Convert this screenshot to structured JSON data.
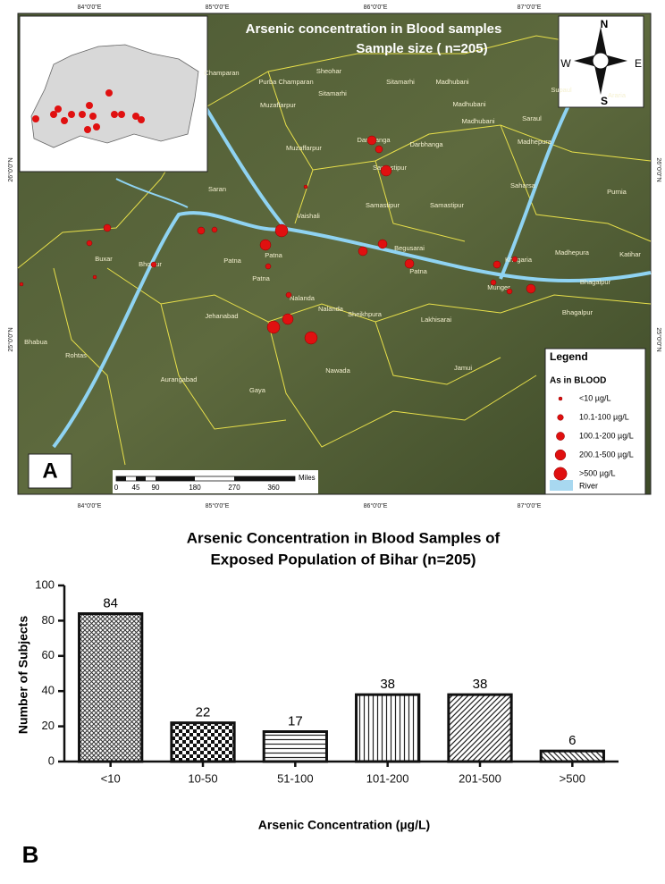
{
  "map": {
    "panel": "A",
    "title": "Arsenic concentration in Blood samples",
    "subtitle": "Sample size ( n=205)",
    "lon_labels": [
      "84°0'0\"E",
      "85°0'0\"E",
      "86°0'0\"E",
      "87°0'0\"E"
    ],
    "lat_labels": [
      "26°0'0\"N",
      "25°0'0\"N"
    ],
    "compass": {
      "n": "N",
      "s": "S",
      "e": "E",
      "w": "W"
    },
    "districts": [
      "Champaran",
      "Purba Champaran",
      "Sitamarhi",
      "Sheohar",
      "Sitamarhi",
      "Madhubani",
      "Madhubani",
      "Madhubani",
      "Supaul",
      "Araria",
      "Saraul",
      "Muzaffarpur",
      "Muzaffarpur",
      "Darbhanga",
      "Darbhanga",
      "Madhepura",
      "Samastipur",
      "Samastipur",
      "Saharsa",
      "Purnia",
      "Saran",
      "Vaishali",
      "Samastipur",
      "Khagaria",
      "Madhepura",
      "Katihar",
      "Buxar",
      "Bhojpur",
      "Patna",
      "Patna",
      "Patna",
      "Begusarai",
      "Patna",
      "Bhagalpur",
      "Nalanda",
      "Nalanda",
      "Munger",
      "Sheikhpura",
      "Lakhisarai",
      "Bhagalpur",
      "Jehanabad",
      "Bhabua",
      "Rohtas",
      "Nawada",
      "Jamui",
      "Aurangabad",
      "Gaya"
    ],
    "legend": {
      "title": "Legend",
      "subtitle": "As in BLOOD",
      "items": [
        "<10 µg/L",
        "10.1-100 µg/L",
        "100.1-200 µg/L",
        "200.1-500 µg/L",
        ">500 µg/L"
      ],
      "river": "River"
    },
    "scale_unit": "Miles",
    "scale_labels": [
      "0",
      "45",
      "90",
      "180",
      "270",
      "360"
    ]
  },
  "chart_data": {
    "type": "bar",
    "panel": "B",
    "title": [
      "Arsenic Concentration in Blood Samples of",
      "Exposed Population of Bihar (n=205)"
    ],
    "x_label": "Arsenic Concentration (µg/L)",
    "y_label": "Number of Subjects",
    "categories": [
      "<10",
      "10-50",
      "51-100",
      "101-200",
      "201-500",
      ">500"
    ],
    "values": [
      84,
      22,
      17,
      38,
      38,
      6
    ],
    "ylim": [
      0,
      100
    ],
    "yticks": [
      0,
      20,
      40,
      60,
      80,
      100
    ]
  }
}
